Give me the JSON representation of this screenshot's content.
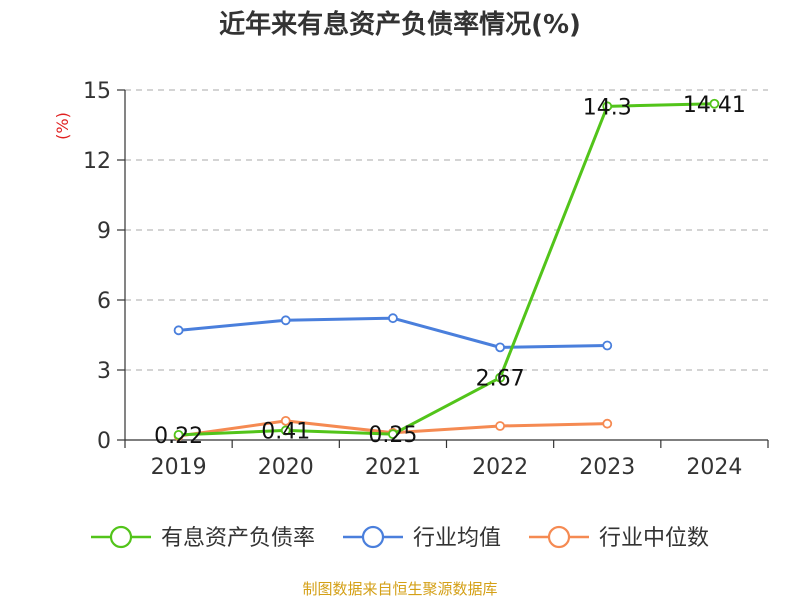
{
  "title": "近年来有息资产负债率情况(%)",
  "source": "制图数据来自恒生聚源数据库",
  "chart_data": {
    "type": "line",
    "title": "近年来有息资产负债率情况(%)",
    "ylabel": "(%)",
    "xlabel": "",
    "categories": [
      "2019",
      "2020",
      "2021",
      "2022",
      "2023",
      "2024"
    ],
    "ylim": [
      0,
      15
    ],
    "yticks": [
      0,
      3,
      6,
      9,
      12,
      15
    ],
    "grid": true,
    "legend_position": "bottom",
    "series": [
      {
        "name": "有息资产负债率",
        "color": "#52c41a",
        "values": [
          0.22,
          0.41,
          0.25,
          2.67,
          14.3,
          14.41
        ],
        "labels": [
          "0.22",
          "0.41",
          "0.25",
          "2.67",
          "14.3",
          "14.41"
        ],
        "show_labels": true
      },
      {
        "name": "行业均值",
        "color": "#4a7fdc",
        "values": [
          4.7,
          5.13,
          5.22,
          3.97,
          4.05,
          null
        ],
        "show_labels": false
      },
      {
        "name": "行业中位数",
        "color": "#f58a52",
        "values": [
          0.17,
          0.82,
          0.31,
          0.6,
          0.7,
          null
        ],
        "show_labels": false
      }
    ]
  }
}
